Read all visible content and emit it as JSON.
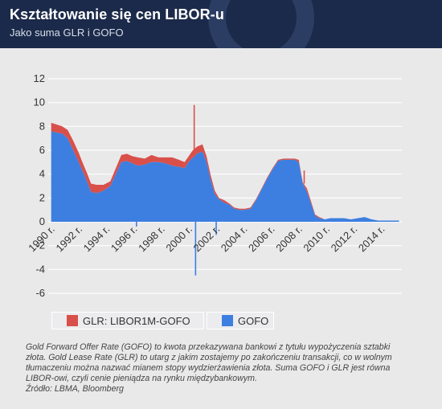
{
  "header": {
    "title": "Kształtowanie się cen LIBOR-u",
    "subtitle": "Jako suma GLR i GOFO"
  },
  "colors": {
    "header_bg": "#1b2a4a",
    "gofo": "#3d7fe0",
    "glr": "#d9504a",
    "background": "#e9e9ea",
    "gridline": "#ffffff"
  },
  "legend": {
    "glr_label": "GLR: LIBOR1M-GOFO",
    "gofo_label": "GOFO"
  },
  "note": {
    "lines": [
      "Gold Forward Offer Rate (GOFO) to kwota przekazywana bankowi z tytułu wypożyczenia sztabki",
      "złota. Gold Lease Rate (GLR) to utarg z jakim zostajemy po zakończeniu transakcji, co w wolnym",
      "tłumaczeniu można nazwać mianem stopy wydzierżawienia złota. Suma GOFO i GLR jest równa",
      "LIBOR-owi, czyli cenie pieniądza na rynku międzybankowym.",
      "Źródło: LBMA, Bloomberg"
    ]
  },
  "chart_data": {
    "type": "area",
    "stacked": true,
    "ylim": [
      -6,
      12
    ],
    "yticks": [
      12,
      10,
      8,
      6,
      4,
      2,
      0,
      -2,
      -4,
      -6
    ],
    "xlim": [
      1989.6,
      2015.2
    ],
    "xticks": [
      1990,
      1992,
      1994,
      1996,
      1998,
      2000,
      2002,
      2004,
      2006,
      2008,
      2010,
      2012,
      2014
    ],
    "xtick_labels": [
      "1990 r.",
      "1992 r.",
      "1994 r.",
      "1996 r.",
      "1998 r.",
      "2000 r.",
      "2002 r.",
      "2004 r.",
      "2006 r.",
      "2008 r.",
      "2010 r.",
      "2012 r.",
      "2014 r."
    ],
    "grid": true,
    "legend_position": "bottom-left",
    "x": [
      1989.7,
      1990.0,
      1990.5,
      1990.9,
      1991.3,
      1991.7,
      1992.0,
      1992.3,
      1992.6,
      1993.0,
      1993.5,
      1994.0,
      1994.4,
      1994.8,
      1995.2,
      1995.6,
      1996.0,
      1996.5,
      1997.0,
      1997.5,
      1998.0,
      1998.5,
      1999.0,
      1999.4,
      1999.7,
      2000.0,
      2000.3,
      2000.7,
      2001.0,
      2001.3,
      2001.6,
      2001.9,
      2002.3,
      2002.7,
      2003.0,
      2003.4,
      2003.8,
      2004.2,
      2004.6,
      2005.0,
      2005.4,
      2005.8,
      2006.2,
      2006.6,
      2007.0,
      2007.4,
      2007.7,
      2008.0,
      2008.3,
      2008.6,
      2008.9,
      2009.2,
      2009.6,
      2010.0,
      2010.5,
      2011.0,
      2011.5,
      2012.0,
      2012.5,
      2013.0,
      2013.5,
      2014.0,
      2014.5,
      2015.0
    ],
    "series": [
      {
        "name": "GOFO",
        "values": [
          7.6,
          7.5,
          7.4,
          7.0,
          6.0,
          5.0,
          4.2,
          3.4,
          2.5,
          2.4,
          2.6,
          3.0,
          4.0,
          5.0,
          5.1,
          4.9,
          4.7,
          4.8,
          5.0,
          5.0,
          4.9,
          4.7,
          4.6,
          4.5,
          5.0,
          5.4,
          5.7,
          5.9,
          5.0,
          3.5,
          2.3,
          1.9,
          1.6,
          1.4,
          1.1,
          1.0,
          1.0,
          1.1,
          1.8,
          2.7,
          3.6,
          4.4,
          5.1,
          5.2,
          5.2,
          5.2,
          5.0,
          3.2,
          2.5,
          1.5,
          0.5,
          0.3,
          0.2,
          0.3,
          0.3,
          0.3,
          0.2,
          0.3,
          0.4,
          0.2,
          0.1,
          0.1,
          0.1,
          0.1
        ]
      },
      {
        "name": "GLR: LIBOR1M-GOFO",
        "values": [
          0.7,
          0.7,
          0.6,
          0.7,
          0.8,
          0.8,
          0.7,
          0.7,
          0.7,
          0.7,
          0.5,
          0.4,
          0.5,
          0.6,
          0.6,
          0.6,
          0.7,
          0.5,
          0.6,
          0.4,
          0.5,
          0.7,
          0.6,
          0.5,
          0.5,
          0.6,
          0.6,
          0.6,
          0.5,
          0.4,
          0.3,
          0.1,
          0.2,
          0.1,
          0.1,
          0.1,
          0.1,
          0.1,
          0.1,
          0.1,
          0.1,
          0.1,
          0.1,
          0.1,
          0.1,
          0.1,
          0.2,
          0.1,
          0.3,
          0.2,
          0.1,
          0.1,
          0.0,
          0.0,
          0.0,
          0.0,
          0.0,
          0.0,
          0.0,
          0.0,
          0.0,
          0.0,
          0.0,
          0.0
        ]
      }
    ],
    "annotations": [
      {
        "series": "GLR: LIBOR1M-GOFO",
        "x": 2000.1,
        "value": 9.8,
        "type": "spike"
      },
      {
        "series": "GOFO",
        "x": 2000.2,
        "value": -4.5,
        "type": "spike"
      },
      {
        "series": "GOFO",
        "x": 2001.7,
        "value": -1.1,
        "type": "spike"
      },
      {
        "series": "GOFO",
        "x": 1995.9,
        "value": -0.4,
        "type": "spike"
      },
      {
        "series": "GLR: LIBOR1M-GOFO",
        "x": 2008.1,
        "value": 4.3,
        "type": "spike"
      }
    ]
  }
}
